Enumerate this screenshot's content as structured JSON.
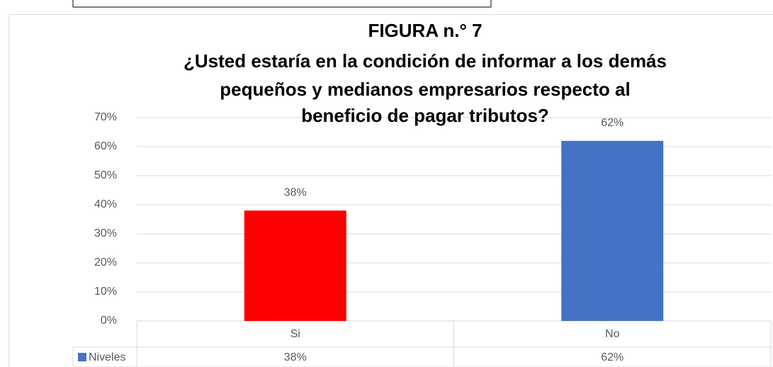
{
  "chart_data": {
    "type": "bar",
    "title": [
      "FIGURA n.° 7",
      "¿Usted estaría en la condición de informar a los demás",
      "pequeños y medianos empresarios respecto al",
      "beneficio de pagar tributos?"
    ],
    "categories": [
      "Si",
      "No"
    ],
    "series": [
      {
        "name": "Niveles",
        "color": "#4472c4",
        "colors": [
          "#ff0000",
          "#4472c4"
        ],
        "values": [
          38,
          62
        ],
        "value_labels": [
          "38%",
          "62%"
        ]
      }
    ],
    "ylim": [
      0,
      70
    ],
    "yticks": [
      {
        "value": 0,
        "label": "0%"
      },
      {
        "value": 10,
        "label": "10%"
      },
      {
        "value": 20,
        "label": "20%"
      },
      {
        "value": 30,
        "label": "30%"
      },
      {
        "value": 40,
        "label": "40%"
      },
      {
        "value": 50,
        "label": "50%"
      },
      {
        "value": 60,
        "label": "60%"
      },
      {
        "value": 70,
        "label": "70%"
      }
    ],
    "grid": true,
    "data_table": true
  }
}
